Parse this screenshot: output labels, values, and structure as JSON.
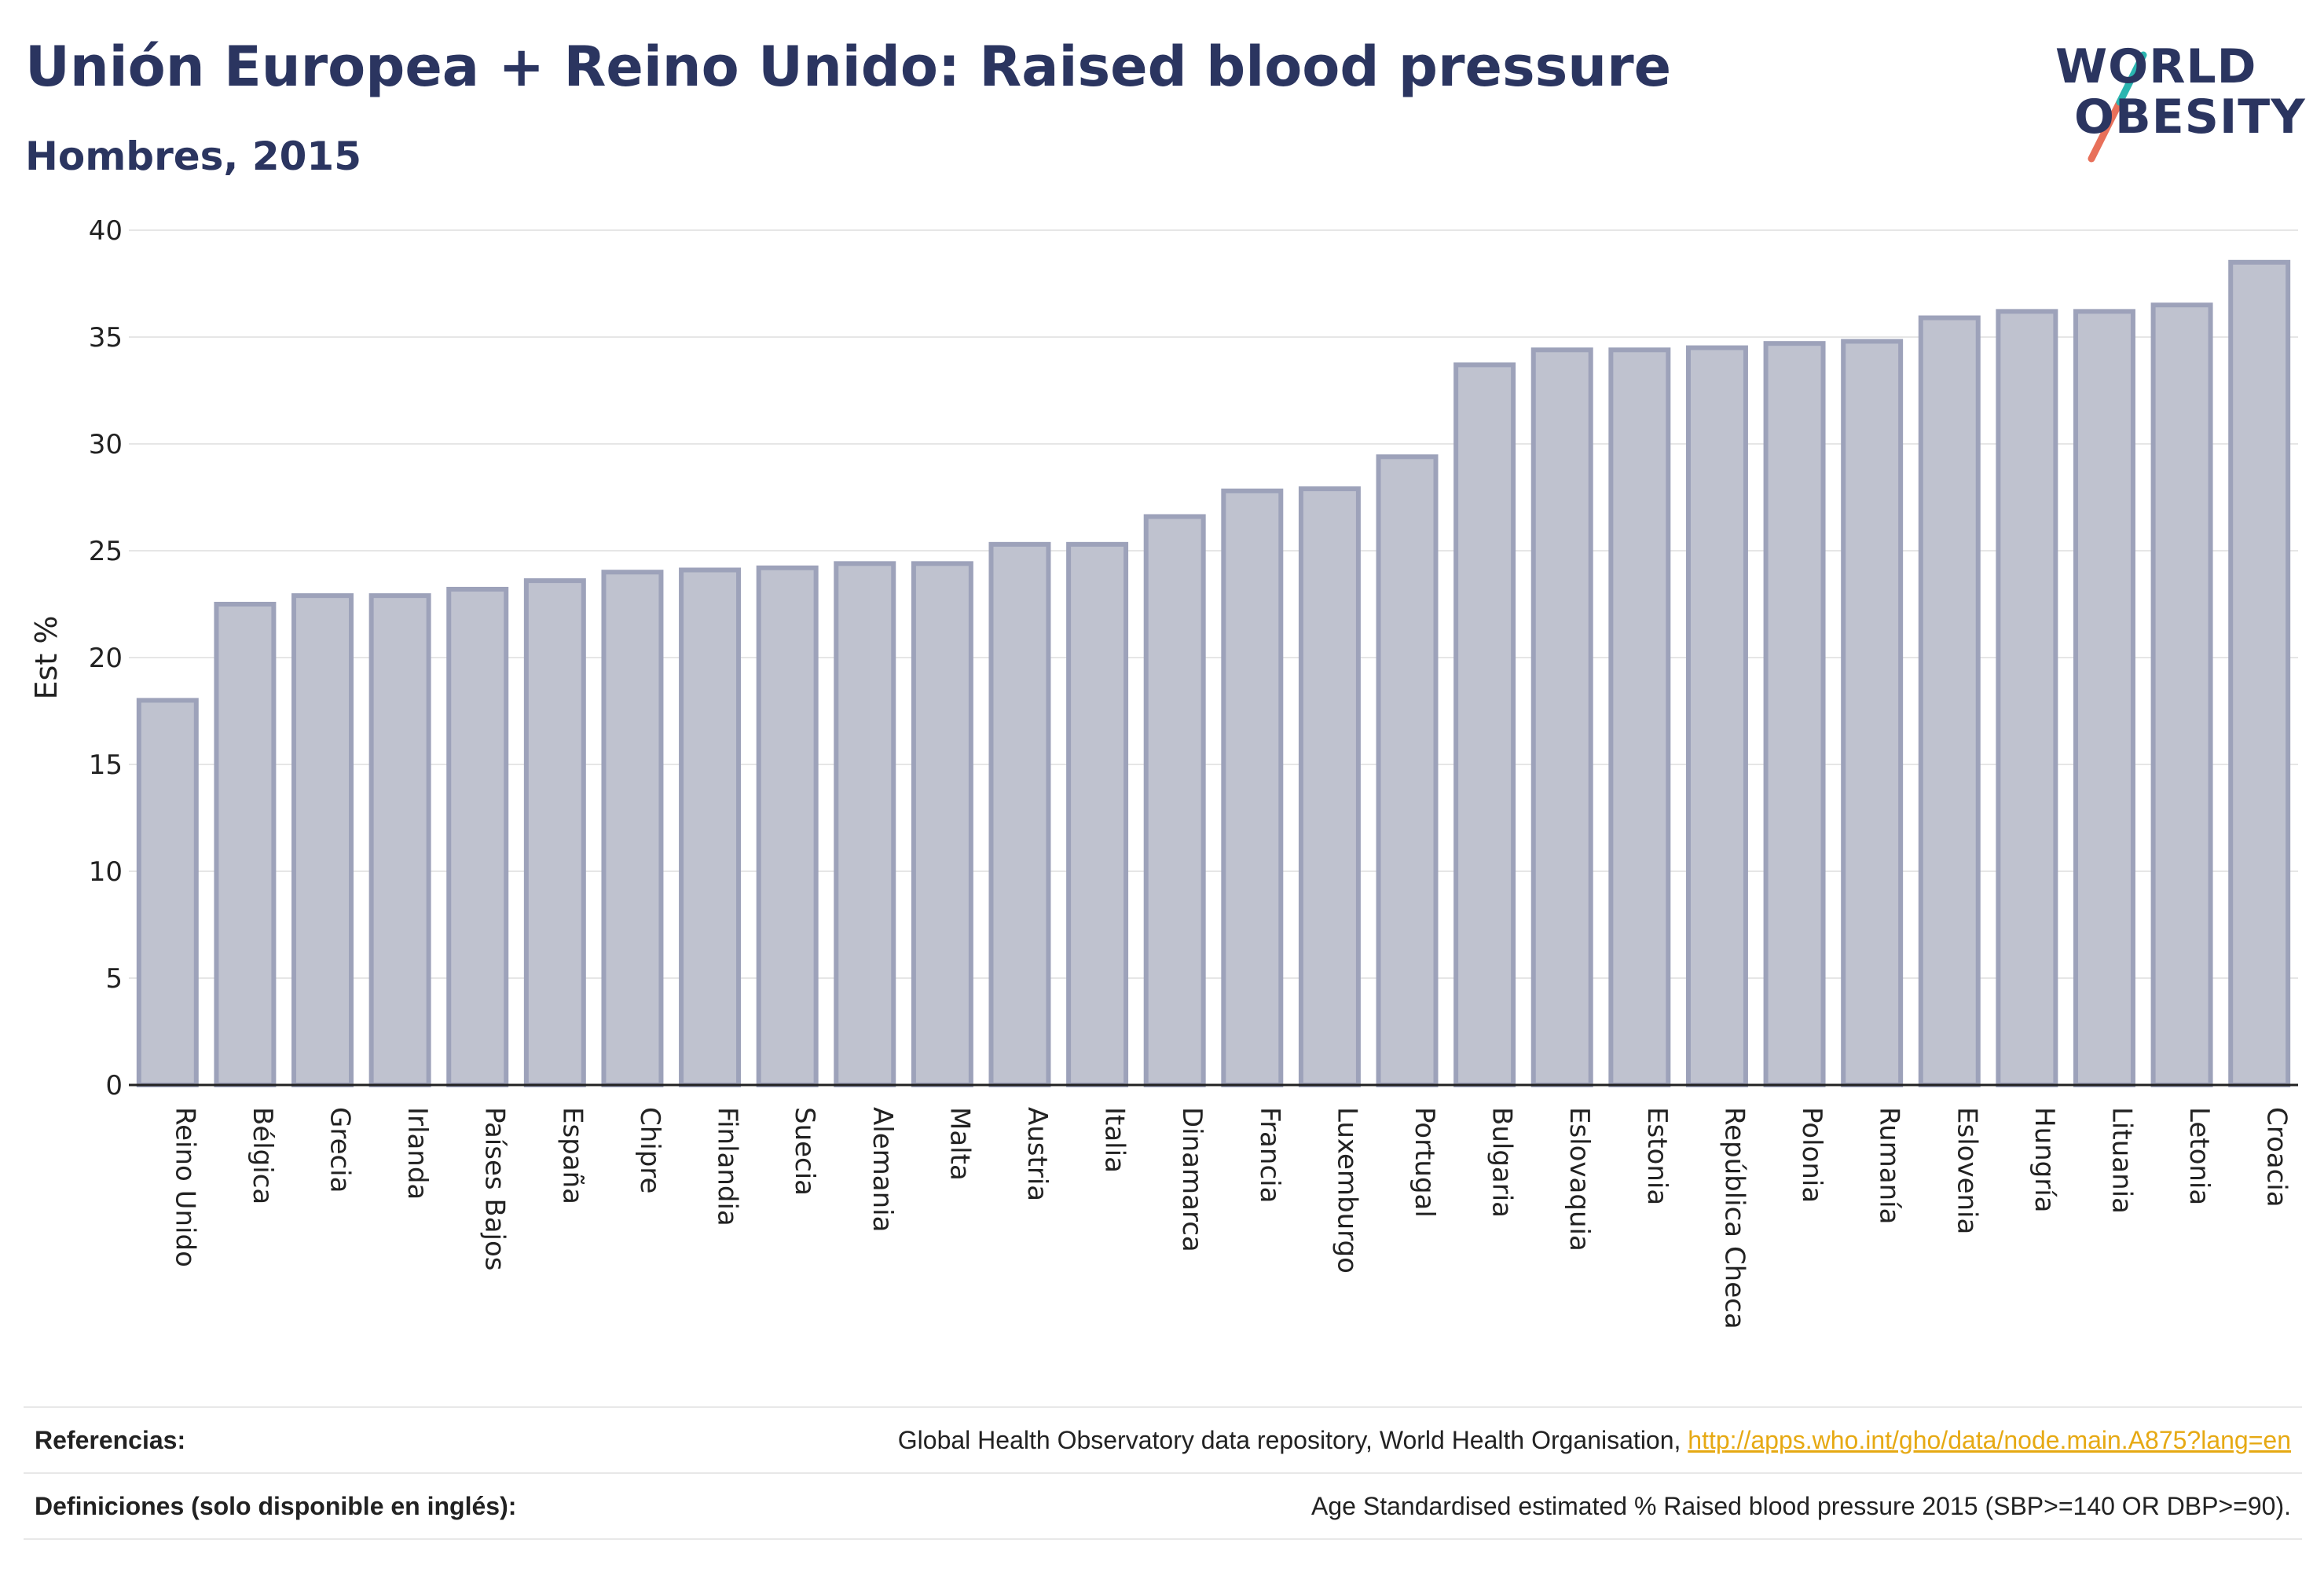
{
  "header": {
    "title": "Unión Europea + Reino Unido: Raised blood pressure",
    "subtitle": "Hombres, 2015"
  },
  "logo": {
    "line1": "WORLD",
    "line2": "OBESITY"
  },
  "colors": {
    "bar_fill": "#bfc2cf",
    "bar_stroke": "#9da2ba",
    "title": "#2b3560",
    "link": "#e6a913",
    "logo_teal": "#2bb5b0",
    "logo_coral": "#e8705a"
  },
  "chart_data": {
    "type": "bar",
    "title": "Unión Europea + Reino Unido: Raised blood pressure",
    "subtitle": "Hombres, 2015",
    "xlabel": "",
    "ylabel": "Est %",
    "ylim": [
      0,
      40
    ],
    "yticks": [
      0,
      5,
      10,
      15,
      20,
      25,
      30,
      35,
      40
    ],
    "grid": true,
    "categories": [
      "Reino Unido",
      "Bélgica",
      "Grecia",
      "Irlanda",
      "Países Bajos",
      "España",
      "Chipre",
      "Finlandia",
      "Suecia",
      "Alemania",
      "Malta",
      "Austria",
      "Italia",
      "Dinamarca",
      "Francia",
      "Luxemburgo",
      "Portugal",
      "Bulgaria",
      "Eslovaquia",
      "Estonia",
      "República Checa",
      "Polonia",
      "Rumanía",
      "Eslovenia",
      "Hungría",
      "Lituania",
      "Letonia",
      "Croacia"
    ],
    "values": [
      18.0,
      22.5,
      22.9,
      22.9,
      23.2,
      23.6,
      24.0,
      24.1,
      24.2,
      24.4,
      24.4,
      25.3,
      25.3,
      26.6,
      27.8,
      27.9,
      29.4,
      33.7,
      34.4,
      34.4,
      34.5,
      34.7,
      34.8,
      35.9,
      36.2,
      36.2,
      36.5,
      38.5
    ]
  },
  "footer": {
    "references_label": "Referencias:",
    "references_text": "Global Health Observatory data repository, World Health Organisation, ",
    "references_link": "http://apps.who.int/gho/data/node.main.A875?lang=en",
    "definitions_label": "Definiciones (solo disponible en inglés):",
    "definitions_text": "Age Standardised estimated % Raised blood pressure 2015 (SBP>=140 OR DBP>=90)."
  }
}
